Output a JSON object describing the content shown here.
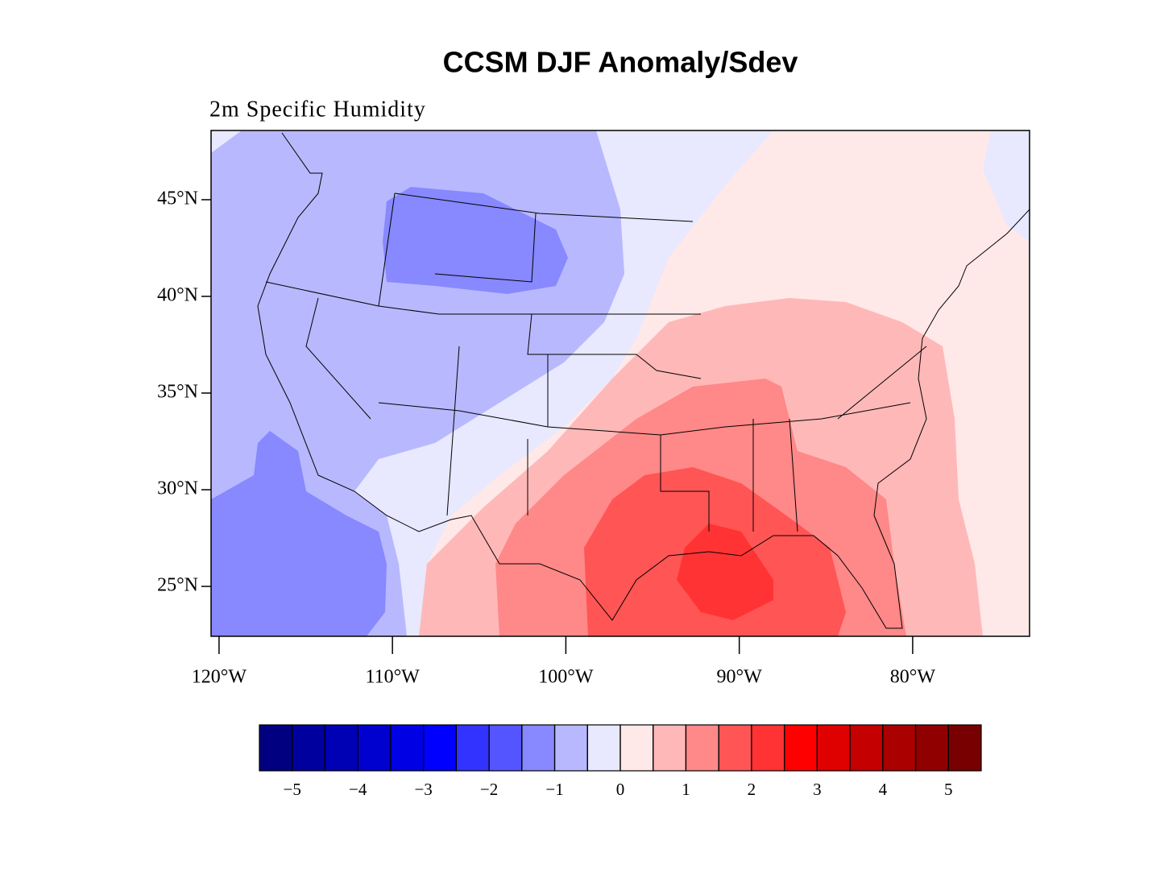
{
  "title": "CCSM DJF Anomaly/Sdev",
  "subtitle": "2m Specific Humidity",
  "map": {
    "lon_range": [
      -120.46,
      -73.26
    ],
    "lat_range": [
      22.42,
      48.58
    ],
    "lat_ticks": [
      {
        "value": 25,
        "label": "25°N"
      },
      {
        "value": 30,
        "label": "30°N"
      },
      {
        "value": 35,
        "label": "35°N"
      },
      {
        "value": 40,
        "label": "40°N"
      },
      {
        "value": 45,
        "label": "45°N"
      }
    ],
    "lon_ticks": [
      {
        "value": -120,
        "label": "120°W"
      },
      {
        "value": -110,
        "label": "110°W"
      },
      {
        "value": -100,
        "label": "100°W"
      },
      {
        "value": -90,
        "label": "90°W"
      },
      {
        "value": -80,
        "label": "80°W"
      }
    ]
  },
  "colorbar": {
    "levels": [
      -5,
      -4.5,
      -4,
      -3.5,
      -3,
      -2.5,
      -2,
      -1.5,
      -1,
      -0.5,
      0,
      0.5,
      1,
      1.5,
      2,
      2.5,
      3,
      3.5,
      4,
      4.5,
      5
    ],
    "colors": [
      "#000080",
      "#00009f",
      "#0000b5",
      "#0000cf",
      "#0000e5",
      "#0000ff",
      "#3333ff",
      "#5555ff",
      "#8888ff",
      "#b8b8ff",
      "#e8e8ff",
      "#ffe8e8",
      "#ffb8b8",
      "#ff8888",
      "#ff5555",
      "#ff3333",
      "#ff0000",
      "#df0000",
      "#c50000",
      "#ab0000",
      "#910000",
      "#780000"
    ],
    "labels": [
      {
        "value": -5,
        "label": "−5"
      },
      {
        "value": -4,
        "label": "−4"
      },
      {
        "value": -3,
        "label": "−3"
      },
      {
        "value": -2,
        "label": "−2"
      },
      {
        "value": -1,
        "label": "−1"
      },
      0,
      1,
      2,
      3,
      4,
      5
    ]
  }
}
